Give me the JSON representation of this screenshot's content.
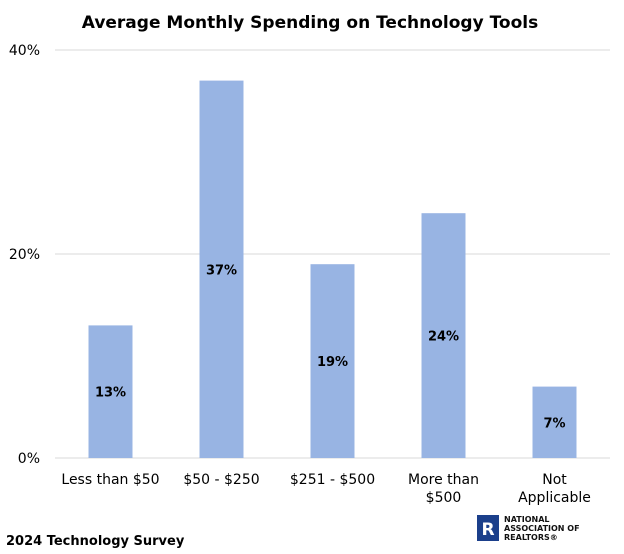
{
  "chart_data": {
    "type": "bar",
    "title": "Average Monthly Spending on Technology Tools",
    "categories": [
      [
        "Less than $50"
      ],
      [
        "$50 - $250"
      ],
      [
        "$251 - $500"
      ],
      [
        "More than",
        "$500"
      ],
      [
        "Not",
        "Applicable"
      ]
    ],
    "values": [
      13,
      37,
      19,
      24,
      7
    ],
    "value_labels": [
      "13%",
      "37%",
      "19%",
      "24%",
      "7%"
    ],
    "ylim": [
      0,
      40
    ],
    "yticks": [
      0,
      20,
      40
    ],
    "ytick_labels": [
      "0%",
      "20%",
      "40%"
    ],
    "xlabel": "",
    "ylabel": "",
    "grid": true,
    "bar_color": "#98b4e3",
    "grid_color": "#d9d9d9"
  },
  "footer": {
    "source": "2024 Technology Survey",
    "logo_lines": [
      "NATIONAL",
      "ASSOCIATION OF",
      "REALTORS®"
    ],
    "logo_mark": "R",
    "logo_color": "#1b3f8b"
  }
}
